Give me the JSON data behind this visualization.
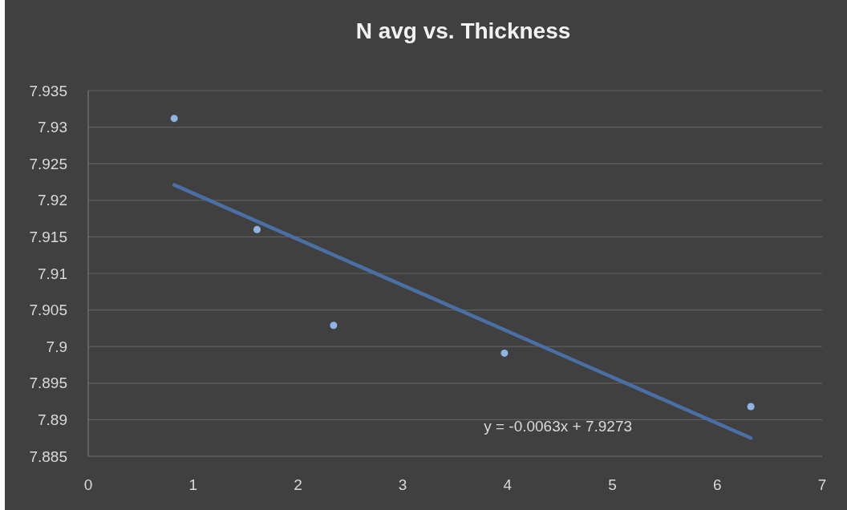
{
  "chart_data": {
    "type": "scatter",
    "title": "N avg vs. Thickness",
    "x": [
      0.82,
      1.61,
      2.34,
      3.97,
      6.32
    ],
    "series": [
      {
        "color": "#8fb4e3",
        "marker": "circle",
        "values": [
          7.9312,
          7.916,
          7.9029,
          7.8991,
          7.8918
        ]
      },
      {
        "type": "line",
        "color": "#4a6fa5",
        "marker": "none",
        "x": [
          0.82,
          6.32
        ],
        "values": [
          7.9221,
          7.8875
        ]
      }
    ],
    "xlim": [
      0,
      7
    ],
    "xticks": [
      0,
      1,
      2,
      3,
      4,
      5,
      6,
      7
    ],
    "ylim": [
      7.885,
      7.935
    ],
    "yticks": [
      7.885,
      7.89,
      7.895,
      7.9,
      7.905,
      7.91,
      7.915,
      7.92,
      7.925,
      7.93,
      7.935
    ],
    "grid": "y",
    "annotations": [
      "y = -0.0063x + 7.9273"
    ]
  }
}
